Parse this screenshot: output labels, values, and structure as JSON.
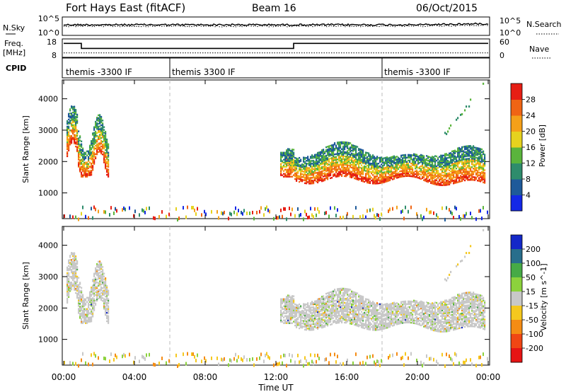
{
  "header": {
    "radar": "Fort Hays East (fitACF)",
    "beam": "Beam 16",
    "date": "06/Oct/2015"
  },
  "noise_panel": {
    "left_label": "N.Sky",
    "right_label": "N.Search",
    "left_ticks": [
      "10^5",
      "10^0"
    ],
    "right_ticks": [
      "10^5",
      "10^0"
    ]
  },
  "freq_panel": {
    "left_label_line1": "Freq.",
    "left_label_line2": "[MHz]",
    "right_label": "Nave",
    "left_ticks": [
      "18",
      "8"
    ],
    "right_ticks": [
      "60",
      "0"
    ],
    "freq_steps": [
      {
        "t": 0.0,
        "f": 16.5
      },
      {
        "t": 1.0,
        "f": 12.8
      },
      {
        "t": 13.0,
        "f": 16.5
      },
      {
        "t": 24.0,
        "f": 16.5
      }
    ],
    "nave_level": 11
  },
  "cpid": {
    "label": "CPID",
    "segments": [
      {
        "start": 0,
        "text": "themis -3300 IF"
      },
      {
        "start": 6,
        "text": "themis 3300 IF"
      },
      {
        "start": 18,
        "text": "themis -3300 IF"
      }
    ]
  },
  "chart_data": [
    {
      "type": "heatmap",
      "name": "power",
      "ylabel": "Slant Range [km]",
      "yticks": [
        1000,
        2000,
        3000,
        4000
      ],
      "ylim": [
        180,
        4600
      ],
      "colorbar": {
        "label": "Power [dB]",
        "ticks": [
          "4",
          "8",
          "12",
          "16",
          "20",
          "24",
          "28"
        ],
        "colors": [
          "#1428e6",
          "#1e5a9a",
          "#2e8c6c",
          "#5ab43c",
          "#e6d21e",
          "#f5a019",
          "#f06414",
          "#e61e14"
        ]
      }
    },
    {
      "type": "heatmap",
      "name": "velocity",
      "ylabel": "Slant Range [km]",
      "yticks": [
        1000,
        2000,
        3000,
        4000
      ],
      "ylim": [
        180,
        4600
      ],
      "colorbar": {
        "label": "Velocity [m s^-1]",
        "ticks": [
          "200",
          "100",
          "50",
          "15",
          "-15",
          "-50",
          "-100",
          "-200"
        ],
        "colors": [
          "#1428c8",
          "#286e8c",
          "#46aa46",
          "#8cd23c",
          "#c8c8c8",
          "#f5c81e",
          "#f58c14",
          "#f04614",
          "#e61414"
        ]
      }
    }
  ],
  "xaxis": {
    "label": "Time UT",
    "ticks": [
      "00:00",
      "04:00",
      "08:00",
      "12:00",
      "16:00",
      "20:00",
      "00:00"
    ],
    "tick_hours": [
      0,
      4,
      8,
      12,
      16,
      20,
      24
    ]
  }
}
